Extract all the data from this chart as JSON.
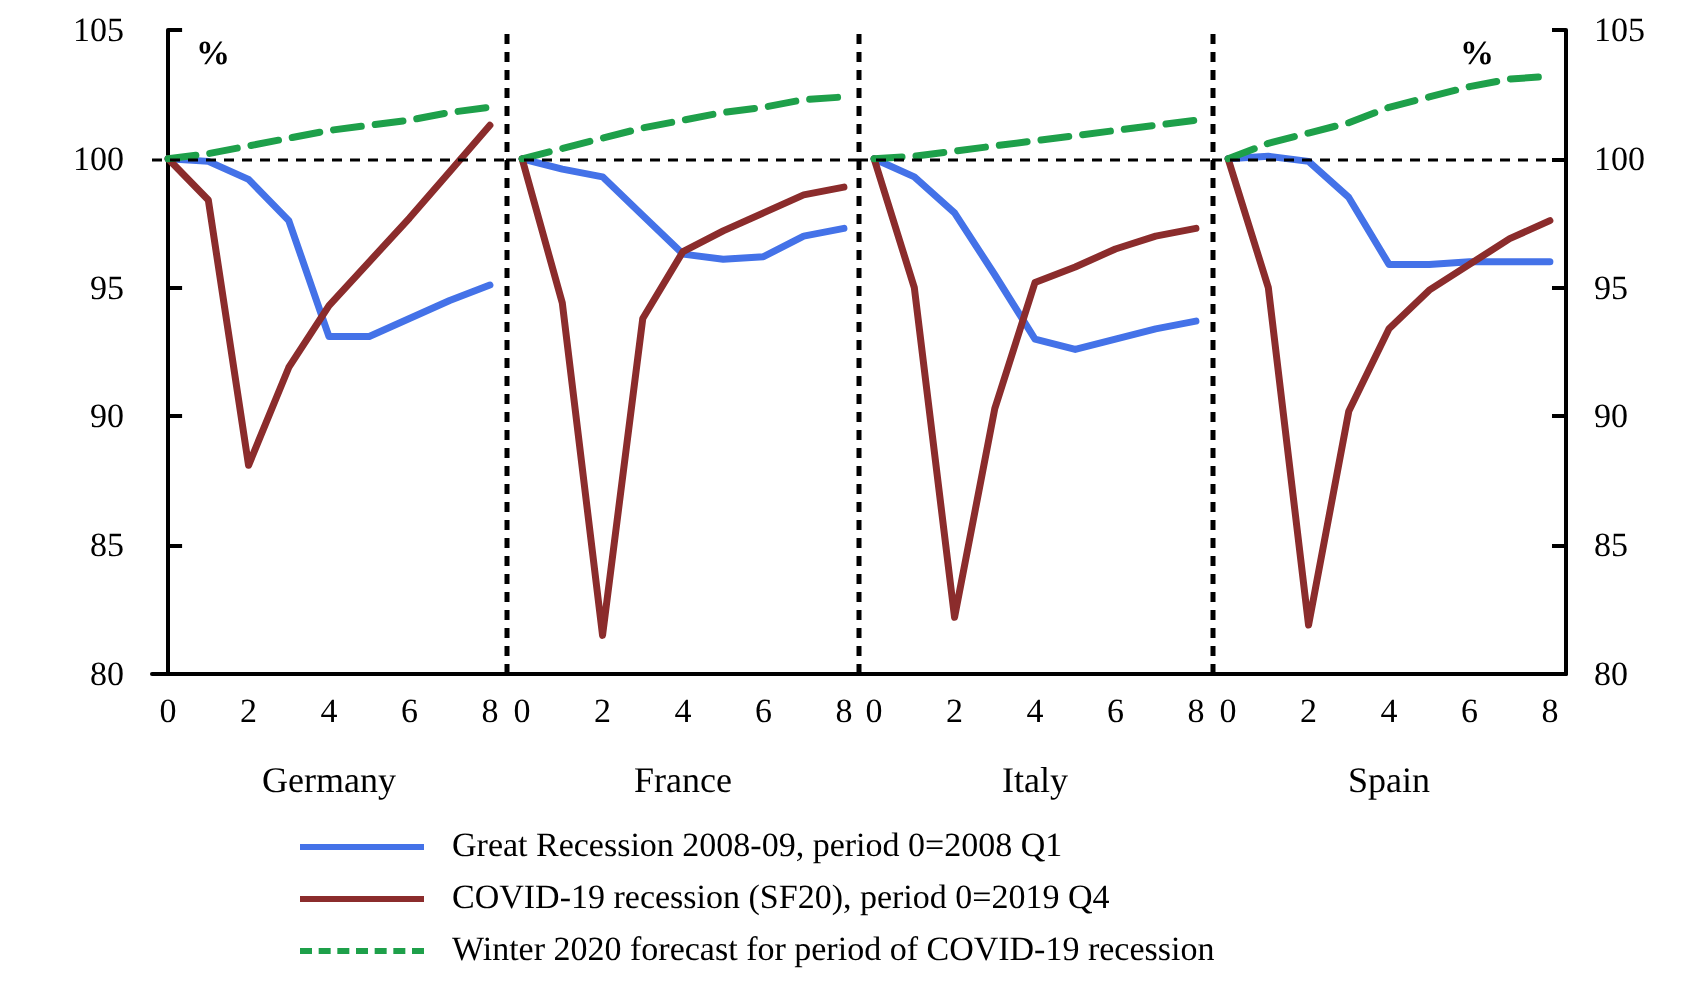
{
  "chart_data": [
    {
      "type": "line",
      "xlabel": "Germany",
      "xlim": [
        -0.4,
        8.4
      ],
      "xticks": [
        0,
        2,
        4,
        6,
        8
      ],
      "ylim": [
        80,
        105
      ],
      "yticks": [
        80,
        85,
        90,
        95,
        100,
        105
      ],
      "annotations": [
        "%"
      ],
      "legend": "bottom",
      "grid": false,
      "ref_lines": [
        {
          "axis": "y",
          "value": 100,
          "color": "#000000",
          "line_style": "dashed"
        }
      ],
      "series": [
        {
          "name": "Great Recession 2008-09, period 0=2008 Q1",
          "color": "#4472e8",
          "line_style": "solid",
          "x": [
            0,
            1,
            2,
            3,
            4,
            5,
            6,
            7,
            8
          ],
          "values": [
            100,
            99.9,
            99.2,
            97.6,
            93.1,
            93.1,
            93.8,
            94.5,
            95.1
          ]
        },
        {
          "name": "COVID-19 recession (SF20), period 0=2019 Q4",
          "color": "#8b2c2c",
          "line_style": "solid",
          "x": [
            0,
            1,
            2,
            3,
            4,
            5,
            6,
            7,
            8
          ],
          "values": [
            100,
            98.4,
            88.1,
            91.9,
            94.3,
            96,
            97.7,
            99.5,
            101.3
          ]
        },
        {
          "name": "Winter 2020 forecast for period of COVID-19 recession",
          "color": "#1ea04a",
          "line_style": "dashed",
          "x": [
            0,
            1,
            2,
            3,
            4,
            5,
            6,
            7,
            8
          ],
          "values": [
            100,
            100.2,
            100.5,
            100.8,
            101.1,
            101.3,
            101.5,
            101.8,
            102
          ]
        }
      ]
    },
    {
      "type": "line",
      "xlabel": "France",
      "xlim": [
        -0.4,
        8.4
      ],
      "xticks": [
        0,
        2,
        4,
        6,
        8
      ],
      "ylim": [
        80,
        105
      ],
      "yticks": [
        80,
        85,
        90,
        95,
        100,
        105
      ],
      "tick_labels": "x",
      "grid": false,
      "ref_lines": [
        {
          "axis": "y",
          "value": 100,
          "color": "#000000",
          "line_style": "dashed"
        },
        {
          "axis": "x",
          "value": -0.4,
          "color": "#000000",
          "line_style": "dashed"
        }
      ],
      "series": [
        {
          "color": "#4472e8",
          "line_style": "solid",
          "x": [
            0,
            1,
            2,
            3,
            4,
            5,
            6,
            7,
            8
          ],
          "values": [
            100,
            99.6,
            99.3,
            97.8,
            96.3,
            96.1,
            96.2,
            97,
            97.3
          ]
        },
        {
          "color": "#8b2c2c",
          "line_style": "solid",
          "x": [
            0,
            1,
            2,
            3,
            4,
            5,
            6,
            7,
            8
          ],
          "values": [
            100,
            94.4,
            81.5,
            93.8,
            96.4,
            97.2,
            97.9,
            98.6,
            98.9
          ]
        },
        {
          "color": "#1ea04a",
          "line_style": "dashed",
          "x": [
            0,
            1,
            2,
            3,
            4,
            5,
            6,
            7,
            8
          ],
          "values": [
            100,
            100.4,
            100.8,
            101.2,
            101.5,
            101.8,
            102,
            102.3,
            102.4
          ]
        }
      ]
    },
    {
      "type": "line",
      "xlabel": "Italy",
      "xlim": [
        -0.4,
        8.4
      ],
      "xticks": [
        0,
        2,
        4,
        6,
        8
      ],
      "ylim": [
        80,
        105
      ],
      "yticks": [
        80,
        85,
        90,
        95,
        100,
        105
      ],
      "tick_labels": "x",
      "grid": false,
      "ref_lines": [
        {
          "axis": "y",
          "value": 100,
          "color": "#000000",
          "line_style": "dashed"
        },
        {
          "axis": "x",
          "value": -0.4,
          "color": "#000000",
          "line_style": "dashed"
        }
      ],
      "series": [
        {
          "color": "#4472e8",
          "line_style": "solid",
          "x": [
            0,
            1,
            2,
            3,
            4,
            5,
            6,
            7,
            8
          ],
          "values": [
            100,
            99.3,
            97.9,
            95.5,
            93,
            92.6,
            93,
            93.4,
            93.7
          ]
        },
        {
          "color": "#8b2c2c",
          "line_style": "solid",
          "x": [
            0,
            1,
            2,
            3,
            4,
            5,
            6,
            7,
            8
          ],
          "values": [
            100,
            95,
            82.2,
            90.3,
            95.2,
            95.8,
            96.5,
            97,
            97.3
          ]
        },
        {
          "color": "#1ea04a",
          "line_style": "dashed",
          "x": [
            0,
            1,
            2,
            3,
            4,
            5,
            6,
            7,
            8
          ],
          "values": [
            100,
            100.1,
            100.3,
            100.5,
            100.7,
            100.9,
            101.1,
            101.3,
            101.5
          ]
        }
      ]
    },
    {
      "type": "line",
      "xlabel": "Spain",
      "xlim": [
        -0.4,
        8.4
      ],
      "xticks": [
        0,
        2,
        4,
        6,
        8
      ],
      "y2lim": [
        80,
        105
      ],
      "y2ticks": [
        80,
        85,
        90,
        95,
        100,
        105
      ],
      "annotations": [
        "%"
      ],
      "grid": false,
      "ref_lines": [
        {
          "axis": "y2",
          "value": 100,
          "color": "#000000",
          "line_style": "dashed"
        },
        {
          "axis": "x",
          "value": -0.4,
          "color": "#000000",
          "line_style": "dashed"
        }
      ],
      "series": [
        {
          "color": "#4472e8",
          "line_style": "solid",
          "axis": "y2",
          "x": [
            0,
            1,
            2,
            3,
            4,
            5,
            6,
            7,
            8
          ],
          "values": [
            100,
            100.1,
            99.9,
            98.5,
            95.9,
            95.9,
            96,
            96,
            96
          ]
        },
        {
          "color": "#8b2c2c",
          "line_style": "solid",
          "axis": "y2",
          "x": [
            0,
            1,
            2,
            3,
            4,
            5,
            6,
            7,
            8
          ],
          "values": [
            100,
            95,
            81.9,
            90.2,
            93.4,
            94.9,
            95.9,
            96.9,
            97.6
          ]
        },
        {
          "color": "#1ea04a",
          "line_style": "dashed",
          "axis": "y2",
          "x": [
            0,
            1,
            2,
            3,
            4,
            5,
            6,
            7,
            8
          ],
          "values": [
            100,
            100.6,
            101,
            101.4,
            102,
            102.4,
            102.8,
            103.1,
            103.2
          ]
        }
      ]
    }
  ]
}
